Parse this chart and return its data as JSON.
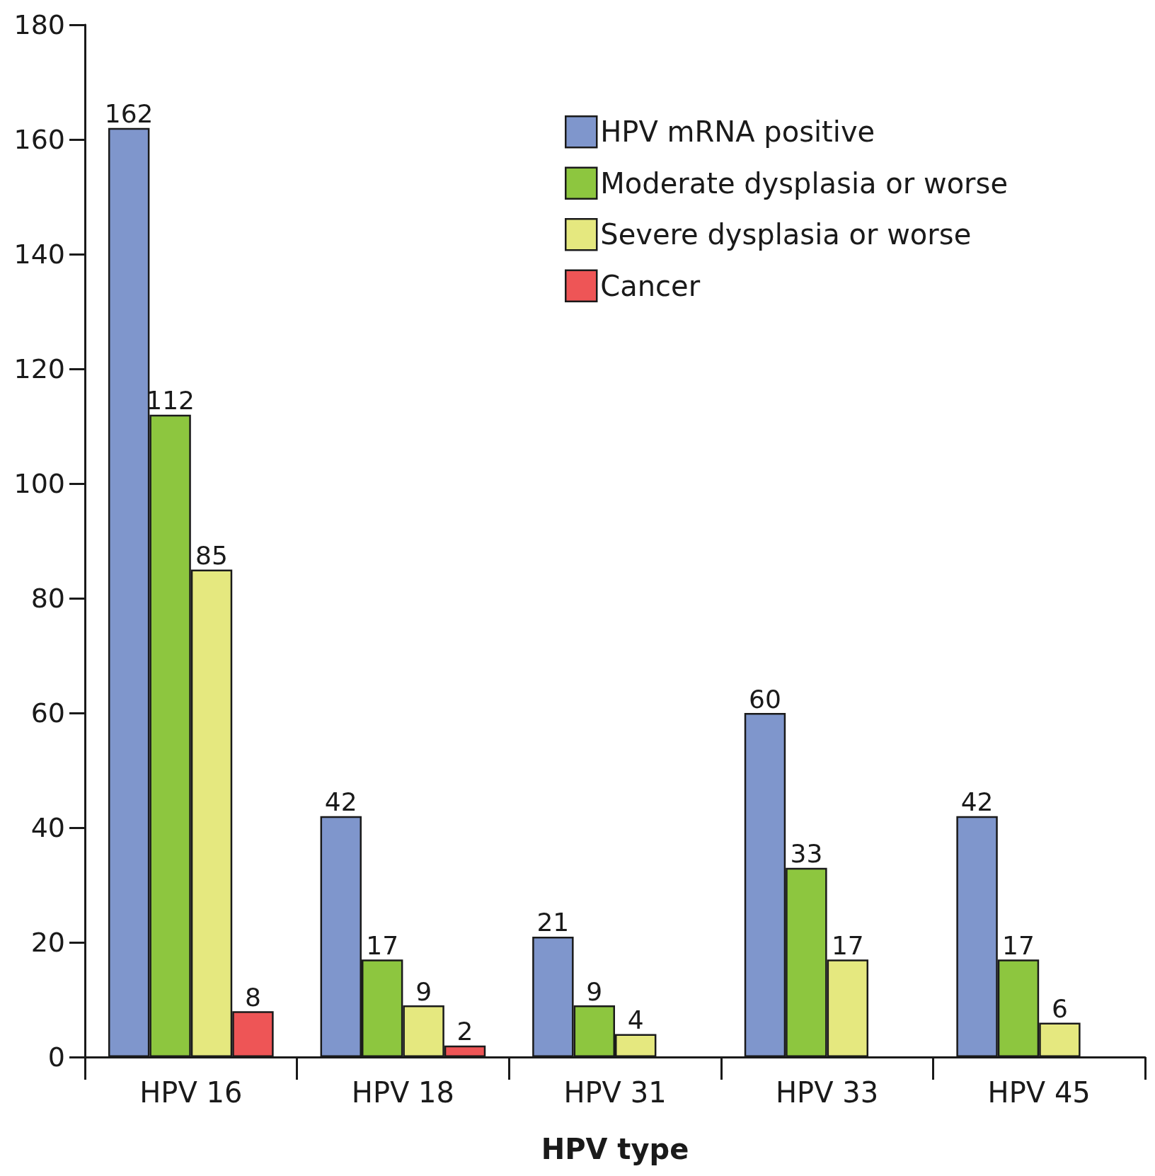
{
  "chart_data": {
    "type": "bar",
    "xlabel": "HPV type",
    "categories": [
      "HPV 16",
      "HPV 18",
      "HPV 31",
      "HPV 33",
      "HPV 45"
    ],
    "series": [
      {
        "name": "HPV mRNA positive",
        "color": "#7f96cc",
        "values": [
          162,
          42,
          21,
          60,
          42
        ]
      },
      {
        "name": "Moderate dysplasia or worse",
        "color": "#8dc63f",
        "values": [
          112,
          17,
          9,
          33,
          17
        ]
      },
      {
        "name": "Severe dysplasia or worse",
        "color": "#e5e87f",
        "values": [
          85,
          9,
          4,
          17,
          6
        ]
      },
      {
        "name": "Cancer",
        "color": "#ee5556",
        "values": [
          8,
          2,
          null,
          null,
          null
        ]
      }
    ],
    "ylim": [
      0,
      180
    ],
    "yticks": [
      0,
      20,
      40,
      60,
      80,
      100,
      120,
      140,
      160,
      180
    ],
    "grid": false,
    "legend": "top right",
    "data_labels": true
  }
}
